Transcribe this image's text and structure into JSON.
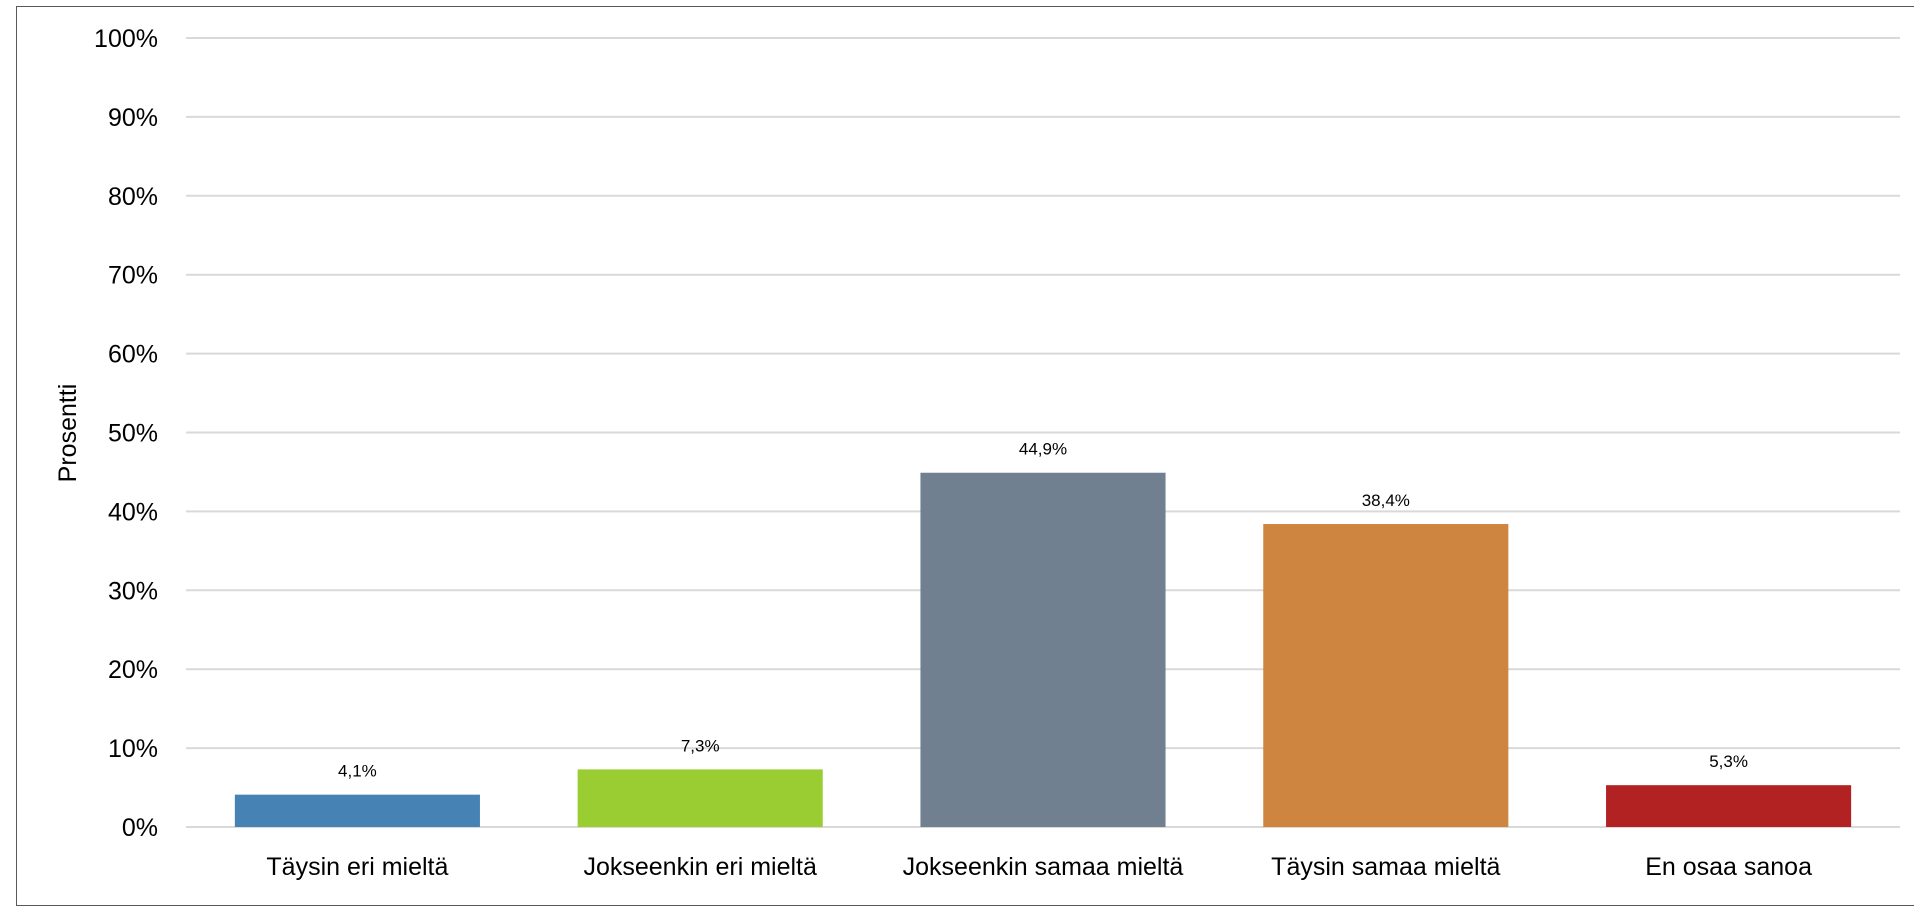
{
  "chart_data": {
    "type": "bar",
    "title": "",
    "xlabel": "",
    "ylabel": "Prosentti",
    "ylim": [
      0,
      100
    ],
    "yticks": [
      0,
      10,
      20,
      30,
      40,
      50,
      60,
      70,
      80,
      90,
      100
    ],
    "ytick_labels": [
      "0%",
      "10%",
      "20%",
      "30%",
      "40%",
      "50%",
      "60%",
      "70%",
      "80%",
      "90%",
      "100%"
    ],
    "grid": true,
    "legend": "none",
    "categories": [
      "Täysin eri mieltä",
      "Jokseenkin eri mieltä",
      "Jokseenkin samaa mieltä",
      "Täysin samaa mieltä",
      "En osaa sanoa"
    ],
    "values": [
      4.1,
      7.3,
      44.9,
      38.4,
      5.3
    ],
    "data_labels": [
      "4,1%",
      "7,3%",
      "44,9%",
      "38,4%",
      "5,3%"
    ],
    "colors": [
      "#4682b4",
      "#9acd32",
      "#708090",
      "#cd853f",
      "#b22222"
    ],
    "gridline_color": "#d9d9d9"
  }
}
